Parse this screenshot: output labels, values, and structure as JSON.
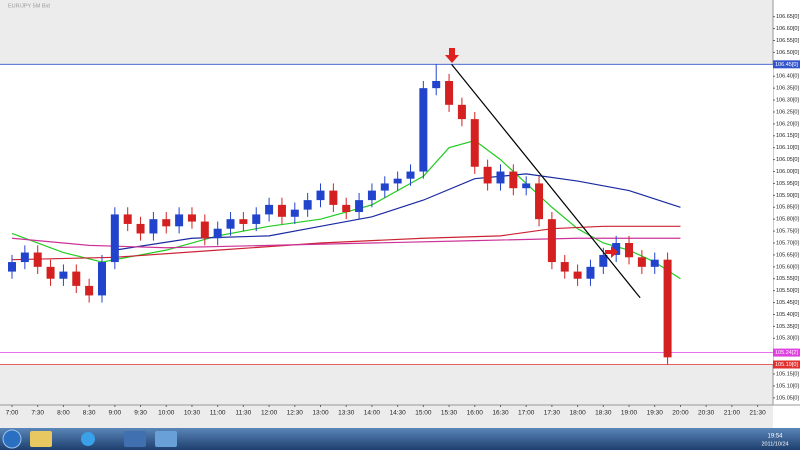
{
  "window": {
    "title": "EUR/JPY 5M Bid"
  },
  "chart_data": {
    "type": "candlestick",
    "x": [
      420,
      435,
      450,
      465,
      480,
      495,
      510,
      525,
      540,
      555,
      570,
      585,
      600,
      615,
      630,
      645,
      660,
      675,
      690,
      705,
      720,
      735,
      750,
      765,
      780,
      795,
      810,
      825,
      840,
      855,
      870,
      885,
      900,
      915,
      930,
      945,
      960,
      975,
      990,
      1005,
      1020,
      1035,
      1050,
      1065,
      1080,
      1095,
      1110,
      1125,
      1140,
      1155,
      1170,
      1185
    ],
    "open": [
      105.58,
      105.62,
      105.66,
      105.6,
      105.55,
      105.58,
      105.52,
      105.48,
      105.62,
      105.82,
      105.78,
      105.74,
      105.8,
      105.77,
      105.82,
      105.79,
      105.72,
      105.76,
      105.8,
      105.78,
      105.82,
      105.86,
      105.81,
      105.84,
      105.88,
      105.92,
      105.86,
      105.83,
      105.88,
      105.92,
      105.95,
      105.97,
      106.0,
      106.35,
      106.38,
      106.28,
      106.22,
      106.02,
      105.95,
      106.0,
      105.93,
      105.95,
      105.8,
      105.62,
      105.58,
      105.55,
      105.6,
      105.65,
      105.7,
      105.64,
      105.6,
      105.63
    ],
    "high": [
      105.65,
      105.69,
      105.69,
      105.63,
      105.61,
      105.61,
      105.55,
      105.65,
      105.85,
      105.85,
      105.81,
      105.83,
      105.83,
      105.85,
      105.85,
      105.82,
      105.79,
      105.83,
      105.83,
      105.85,
      105.89,
      105.89,
      105.87,
      105.91,
      105.95,
      105.95,
      105.89,
      105.91,
      105.95,
      105.98,
      106.0,
      106.03,
      106.38,
      106.45,
      106.41,
      106.31,
      106.25,
      106.05,
      106.03,
      106.03,
      105.98,
      105.98,
      105.83,
      105.65,
      105.61,
      105.63,
      105.68,
      105.73,
      105.73,
      105.67,
      105.66,
      105.66
    ],
    "low": [
      105.55,
      105.59,
      105.57,
      105.52,
      105.52,
      105.49,
      105.45,
      105.45,
      105.59,
      105.75,
      105.71,
      105.71,
      105.74,
      105.74,
      105.76,
      105.69,
      105.69,
      105.73,
      105.75,
      105.75,
      105.79,
      105.78,
      105.78,
      105.81,
      105.85,
      105.83,
      105.8,
      105.8,
      105.85,
      105.89,
      105.92,
      105.94,
      105.97,
      106.32,
      106.25,
      106.19,
      105.99,
      105.92,
      105.92,
      105.9,
      105.9,
      105.77,
      105.59,
      105.55,
      105.52,
      105.52,
      105.57,
      105.62,
      105.61,
      105.57,
      105.57,
      105.19
    ],
    "close": [
      105.62,
      105.66,
      105.6,
      105.55,
      105.58,
      105.52,
      105.48,
      105.62,
      105.82,
      105.78,
      105.74,
      105.8,
      105.77,
      105.82,
      105.79,
      105.72,
      105.76,
      105.8,
      105.78,
      105.82,
      105.86,
      105.81,
      105.84,
      105.88,
      105.92,
      105.86,
      105.83,
      105.88,
      105.92,
      105.95,
      105.97,
      106.0,
      106.35,
      106.38,
      106.28,
      106.22,
      106.02,
      105.95,
      106.0,
      105.93,
      105.95,
      105.8,
      105.62,
      105.58,
      105.55,
      105.6,
      105.65,
      105.7,
      105.64,
      105.6,
      105.63,
      105.22
    ],
    "up_color": "#2244cc",
    "down_color": "#d42020",
    "series": [
      {
        "color": "#22cc22",
        "x": [
          420,
          480,
          525,
          600,
          660,
          720,
          780,
          840,
          900,
          930,
          960,
          990,
          1020,
          1050,
          1080,
          1110,
          1140,
          1170,
          1200
        ],
        "values": [
          105.74,
          105.66,
          105.62,
          105.67,
          105.73,
          105.77,
          105.8,
          105.86,
          105.98,
          106.1,
          106.13,
          106.05,
          105.95,
          105.85,
          105.76,
          105.7,
          105.67,
          105.62,
          105.55
        ]
      },
      {
        "color": "#1a2aa0",
        "x": [
          540,
          630,
          720,
          780,
          840,
          900,
          960,
          1020,
          1080,
          1140,
          1200
        ],
        "values": [
          105.67,
          105.72,
          105.73,
          105.77,
          105.81,
          105.88,
          105.97,
          105.99,
          105.96,
          105.92,
          105.85
        ]
      },
      {
        "color": "#cc2233",
        "x": [
          420,
          540,
          660,
          780,
          900,
          990,
          1050,
          1110,
          1200
        ],
        "values": [
          105.63,
          105.64,
          105.67,
          105.7,
          105.72,
          105.73,
          105.76,
          105.77,
          105.77
        ]
      },
      {
        "color": "#cc3399",
        "x": [
          420,
          510,
          600,
          720,
          840,
          960,
          1080,
          1200
        ],
        "values": [
          105.72,
          105.69,
          105.68,
          105.69,
          105.7,
          105.71,
          105.72,
          105.72
        ]
      }
    ],
    "trendline": {
      "color": "#000000",
      "x": [
        933,
        1153
      ],
      "values": [
        106.45,
        105.47
      ]
    },
    "levels": [
      {
        "value": 106.45,
        "label": "106.45[0]",
        "color": "#3355cc"
      },
      {
        "value": 105.24,
        "label": "105.24[2]",
        "color": "#e040e0"
      },
      {
        "value": 105.19,
        "label": "105.19[0]",
        "color": "#e03030"
      }
    ],
    "xlim": [
      406,
      1308
    ],
    "ylim": [
      105.02,
      106.72
    ],
    "xticks": [
      {
        "value": 420,
        "label": "7:00"
      },
      {
        "value": 450,
        "label": "7:30"
      },
      {
        "value": 480,
        "label": "8:00"
      },
      {
        "value": 510,
        "label": "8:30"
      },
      {
        "value": 540,
        "label": "9:00"
      },
      {
        "value": 570,
        "label": "9:30"
      },
      {
        "value": 600,
        "label": "10:00"
      },
      {
        "value": 630,
        "label": "10:30"
      },
      {
        "value": 660,
        "label": "11:00"
      },
      {
        "value": 690,
        "label": "11:30"
      },
      {
        "value": 720,
        "label": "12:00"
      },
      {
        "value": 750,
        "label": "12:30"
      },
      {
        "value": 780,
        "label": "13:00"
      },
      {
        "value": 810,
        "label": "13:30"
      },
      {
        "value": 840,
        "label": "14:00"
      },
      {
        "value": 870,
        "label": "14:30"
      },
      {
        "value": 900,
        "label": "15:00"
      },
      {
        "value": 930,
        "label": "15:30"
      },
      {
        "value": 960,
        "label": "16:00"
      },
      {
        "value": 990,
        "label": "16:30"
      },
      {
        "value": 1020,
        "label": "17:00"
      },
      {
        "value": 1050,
        "label": "17:30"
      },
      {
        "value": 1080,
        "label": "18:00"
      },
      {
        "value": 1110,
        "label": "18:30"
      },
      {
        "value": 1140,
        "label": "19:00"
      },
      {
        "value": 1170,
        "label": "19:30"
      },
      {
        "value": 1200,
        "label": "20:00"
      },
      {
        "value": 1230,
        "label": "20:30"
      },
      {
        "value": 1260,
        "label": "21:00"
      },
      {
        "value": 1290,
        "label": "21:30"
      }
    ],
    "yticks": [
      {
        "value": 105.05,
        "label": "105.05[0]"
      },
      {
        "value": 105.1,
        "label": "105.10[0]"
      },
      {
        "value": 105.15,
        "label": "105.15[0]"
      },
      {
        "value": 105.3,
        "label": "105.30[0]"
      },
      {
        "value": 105.35,
        "label": "105.35[0]"
      },
      {
        "value": 105.4,
        "label": "105.40[0]"
      },
      {
        "value": 105.45,
        "label": "105.45[0]"
      },
      {
        "value": 105.5,
        "label": "105.50[0]"
      },
      {
        "value": 105.55,
        "label": "105.55[0]"
      },
      {
        "value": 105.6,
        "label": "105.60[0]"
      },
      {
        "value": 105.65,
        "label": "105.65[0]"
      },
      {
        "value": 105.7,
        "label": "105.70[0]"
      },
      {
        "value": 105.75,
        "label": "105.75[0]"
      },
      {
        "value": 105.8,
        "label": "105.80[0]"
      },
      {
        "value": 105.85,
        "label": "105.85[0]"
      },
      {
        "value": 105.9,
        "label": "105.90[0]"
      },
      {
        "value": 105.95,
        "label": "105.95[0]"
      },
      {
        "value": 106.0,
        "label": "106.00[0]"
      },
      {
        "value": 106.05,
        "label": "106.05[0]"
      },
      {
        "value": 106.1,
        "label": "106.10[0]"
      },
      {
        "value": 106.15,
        "label": "106.15[0]"
      },
      {
        "value": 106.2,
        "label": "106.20[0]"
      },
      {
        "value": 106.25,
        "label": "106.25[0]"
      },
      {
        "value": 106.3,
        "label": "106.30[0]"
      },
      {
        "value": 106.35,
        "label": "106.35[0]"
      },
      {
        "value": 106.4,
        "label": "106.40[0]"
      },
      {
        "value": 106.5,
        "label": "106.50[0]"
      },
      {
        "value": 106.55,
        "label": "106.55[0]"
      },
      {
        "value": 106.6,
        "label": "106.60[0]"
      },
      {
        "value": 106.65,
        "label": "106.65[0]"
      }
    ]
  },
  "taskbar": {
    "time": "19:54",
    "date": "2011/10/24"
  }
}
